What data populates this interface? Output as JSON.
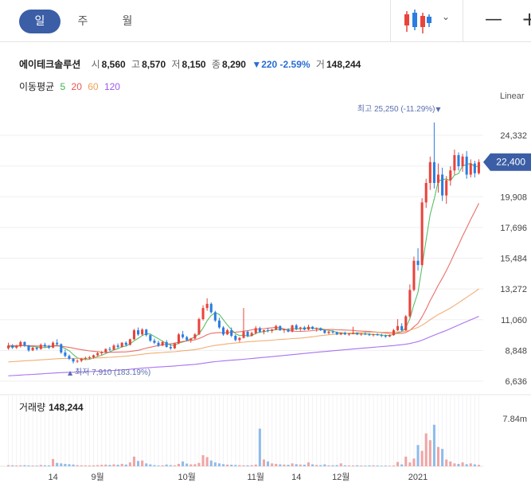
{
  "tabs": [
    {
      "label": "일",
      "active": true
    },
    {
      "label": "주",
      "active": false
    },
    {
      "label": "월",
      "active": false
    }
  ],
  "toolbar": {
    "chart_type_icon": "candlestick-icon",
    "dropdown_icon": "chevron-down-icon",
    "zoom_out_icon": "minus-icon",
    "zoom_in_icon": "plus-icon"
  },
  "stock": {
    "name": "에이테크솔루션",
    "open_label": "시",
    "open": "8,560",
    "high_label": "고",
    "high": "8,570",
    "low_label": "저",
    "low": "8,150",
    "close_label": "종",
    "close": "8,290",
    "change": "▼220 -2.59%",
    "volume_label": "거",
    "volume": "148,244"
  },
  "moving_average": {
    "label": "이동평균",
    "periods": [
      {
        "label": "5",
        "color": "#3cb44b"
      },
      {
        "label": "20",
        "color": "#e8554e"
      },
      {
        "label": "60",
        "color": "#f0a05a"
      },
      {
        "label": "120",
        "color": "#9b59f0"
      }
    ]
  },
  "scale_label": "Linear",
  "current_price_label": "22,400",
  "volume_panel": {
    "label": "거래량",
    "value": "148,244"
  },
  "colors": {
    "up": "#e8443c",
    "down": "#2b7de0",
    "accent": "#3b5ea6",
    "price_tag": "#3b5ea6"
  },
  "chart_data": {
    "type": "candlestick",
    "y_ticks": [
      "24,332",
      "22,120",
      "19,908",
      "17,696",
      "15,484",
      "13,272",
      "11,060",
      "8,848",
      "6,636"
    ],
    "ylim": [
      6636,
      24332
    ],
    "x_ticks": [
      {
        "label": "14",
        "index": 11
      },
      {
        "label": "9월",
        "index": 22
      },
      {
        "label": "10월",
        "index": 44
      },
      {
        "label": "11월",
        "index": 61
      },
      {
        "label": "14",
        "index": 71
      },
      {
        "label": "12월",
        "index": 82
      },
      {
        "label": "2021",
        "index": 101
      }
    ],
    "volume_ticks": [
      "7.84m"
    ],
    "volume_max": 7840000,
    "annotations": [
      {
        "text": "최고 25,250 (-11.29%)",
        "type": "high",
        "index": 106,
        "value": 25250
      },
      {
        "text": "최저 7,910 (183.19%)",
        "type": "low",
        "index": 16,
        "value": 7910
      }
    ],
    "candles": [
      [
        9000,
        9400,
        8900,
        9200
      ],
      [
        9200,
        9300,
        8950,
        9050
      ],
      [
        9050,
        9250,
        8950,
        9150
      ],
      [
        9150,
        9550,
        9050,
        9450
      ],
      [
        9450,
        9500,
        9100,
        9200
      ],
      [
        9200,
        9250,
        8750,
        8850
      ],
      [
        8850,
        9100,
        8800,
        9050
      ],
      [
        9050,
        9100,
        8850,
        8950
      ],
      [
        8950,
        9350,
        8900,
        9250
      ],
      [
        9250,
        9400,
        9050,
        9150
      ],
      [
        9150,
        9250,
        8950,
        9050
      ],
      [
        9050,
        9500,
        9000,
        9400
      ],
      [
        9400,
        9650,
        9200,
        9300
      ],
      [
        9300,
        9350,
        8600,
        8700
      ],
      [
        8700,
        8900,
        8350,
        8450
      ],
      [
        8450,
        8550,
        8150,
        8250
      ],
      [
        8250,
        8300,
        7910,
        8050
      ],
      [
        8050,
        8200,
        7950,
        8100
      ],
      [
        8100,
        8300,
        8000,
        8250
      ],
      [
        8250,
        8400,
        8150,
        8300
      ],
      [
        8300,
        8450,
        8200,
        8350
      ],
      [
        8350,
        8550,
        8250,
        8500
      ],
      [
        8500,
        8750,
        8400,
        8650
      ],
      [
        8650,
        8800,
        8500,
        8700
      ],
      [
        8700,
        9000,
        8650,
        8950
      ],
      [
        8950,
        9100,
        8800,
        8900
      ],
      [
        8900,
        9300,
        8850,
        9200
      ],
      [
        9200,
        9350,
        9000,
        9100
      ],
      [
        9100,
        9450,
        9050,
        9400
      ],
      [
        9400,
        9500,
        9150,
        9250
      ],
      [
        9250,
        9700,
        9200,
        9650
      ],
      [
        9650,
        10400,
        9600,
        10300
      ],
      [
        10300,
        10500,
        9900,
        10000
      ],
      [
        10000,
        10450,
        9900,
        10350
      ],
      [
        10350,
        10400,
        9850,
        9950
      ],
      [
        9950,
        10000,
        9450,
        9550
      ],
      [
        9550,
        9700,
        9300,
        9400
      ],
      [
        9400,
        9550,
        9100,
        9200
      ],
      [
        9200,
        9550,
        9150,
        9450
      ],
      [
        9450,
        9600,
        9050,
        9100
      ],
      [
        9100,
        9300,
        8900,
        9000
      ],
      [
        9000,
        9400,
        8950,
        9350
      ],
      [
        9350,
        10100,
        9300,
        10000
      ],
      [
        10000,
        10250,
        9700,
        9800
      ],
      [
        9800,
        9900,
        9500,
        9600
      ],
      [
        9600,
        9750,
        9400,
        9700
      ],
      [
        9700,
        10100,
        9650,
        10000
      ],
      [
        10000,
        11200,
        9950,
        11100
      ],
      [
        11100,
        12100,
        11000,
        11900
      ],
      [
        11900,
        12600,
        11700,
        12200
      ],
      [
        12200,
        12300,
        11500,
        11600
      ],
      [
        11600,
        11700,
        10900,
        11000
      ],
      [
        11000,
        11200,
        10400,
        10500
      ],
      [
        10500,
        10600,
        9900,
        10000
      ],
      [
        10000,
        10400,
        9950,
        10300
      ],
      [
        10300,
        10500,
        9800,
        9900
      ],
      [
        9900,
        10000,
        9500,
        9600
      ],
      [
        9600,
        9800,
        9450,
        9750
      ],
      [
        9750,
        11900,
        9700,
        10200
      ],
      [
        10200,
        10300,
        9800,
        9900
      ],
      [
        9900,
        10200,
        9850,
        10100
      ],
      [
        10100,
        10600,
        10000,
        10450
      ],
      [
        10450,
        10550,
        10100,
        10200
      ],
      [
        10200,
        10350,
        10000,
        10300
      ],
      [
        10300,
        10450,
        10150,
        10250
      ],
      [
        10250,
        10400,
        10100,
        10350
      ],
      [
        10350,
        10700,
        10300,
        10600
      ],
      [
        10600,
        10650,
        10250,
        10300
      ],
      [
        10300,
        10400,
        10100,
        10350
      ],
      [
        10350,
        10450,
        10150,
        10200
      ],
      [
        10200,
        10700,
        10150,
        10650
      ],
      [
        10650,
        10750,
        10300,
        10400
      ],
      [
        10400,
        10550,
        10250,
        10500
      ],
      [
        10500,
        10600,
        10300,
        10350
      ],
      [
        10350,
        10700,
        10300,
        10550
      ],
      [
        10550,
        10600,
        10350,
        10400
      ],
      [
        10400,
        10500,
        10200,
        10450
      ],
      [
        10450,
        10500,
        10250,
        10300
      ],
      [
        10300,
        10350,
        10050,
        10100
      ],
      [
        10100,
        10250,
        10000,
        10200
      ],
      [
        10200,
        10300,
        10050,
        10150
      ],
      [
        10150,
        10200,
        9950,
        10000
      ],
      [
        10000,
        10150,
        9950,
        10100
      ],
      [
        10100,
        10200,
        9950,
        10000
      ],
      [
        10000,
        10100,
        9900,
        10050
      ],
      [
        10050,
        10550,
        10000,
        10100
      ],
      [
        10100,
        10150,
        9950,
        10000
      ],
      [
        10000,
        10100,
        9900,
        10050
      ],
      [
        10050,
        10150,
        9950,
        10000
      ],
      [
        10000,
        10100,
        9900,
        9950
      ],
      [
        9950,
        10050,
        9850,
        10000
      ],
      [
        10000,
        10100,
        9900,
        9950
      ],
      [
        9950,
        10050,
        9800,
        9900
      ],
      [
        9900,
        10000,
        9750,
        9850
      ],
      [
        9850,
        10000,
        9800,
        9950
      ],
      [
        9950,
        10400,
        9900,
        10300
      ],
      [
        10300,
        11100,
        10250,
        10600
      ],
      [
        10600,
        10800,
        10200,
        10300
      ],
      [
        10300,
        11400,
        10250,
        11300
      ],
      [
        11300,
        13600,
        11200,
        13200
      ],
      [
        13200,
        15600,
        13100,
        15300
      ],
      [
        15300,
        16200,
        14600,
        15000
      ],
      [
        15000,
        19800,
        14900,
        19500
      ],
      [
        19500,
        21200,
        19100,
        20900
      ],
      [
        20900,
        22800,
        20400,
        22400
      ],
      [
        22400,
        25250,
        20500,
        20900
      ],
      [
        20900,
        22300,
        20200,
        21500
      ],
      [
        21500,
        22000,
        19600,
        20000
      ],
      [
        20000,
        21400,
        19400,
        21100
      ],
      [
        21100,
        22100,
        20700,
        21800
      ],
      [
        21800,
        23300,
        21500,
        22900
      ],
      [
        22900,
        23100,
        21800,
        22100
      ],
      [
        22100,
        23000,
        21700,
        22800
      ],
      [
        22800,
        23200,
        21200,
        21500
      ],
      [
        21500,
        22600,
        21300,
        22300
      ],
      [
        22300,
        22500,
        21300,
        21600
      ],
      [
        21600,
        22600,
        21500,
        22400
      ]
    ],
    "volumes": [
      0.12,
      0.1,
      0.08,
      0.1,
      0.11,
      0.09,
      0.08,
      0.07,
      0.14,
      0.1,
      0.09,
      0.75,
      0.35,
      0.3,
      0.25,
      0.22,
      0.18,
      0.12,
      0.1,
      0.09,
      0.08,
      0.1,
      0.12,
      0.15,
      0.18,
      0.14,
      0.2,
      0.16,
      0.25,
      0.18,
      0.4,
      1.0,
      0.55,
      0.6,
      0.3,
      0.2,
      0.12,
      0.08,
      0.1,
      0.18,
      0.12,
      0.1,
      0.25,
      0.5,
      0.28,
      0.2,
      0.22,
      0.35,
      1.15,
      0.95,
      0.6,
      0.4,
      0.3,
      0.22,
      0.18,
      0.16,
      0.14,
      0.12,
      0.1,
      0.1,
      0.12,
      0.18,
      3.9,
      0.7,
      0.5,
      0.3,
      0.25,
      0.2,
      0.18,
      0.16,
      0.3,
      0.22,
      0.18,
      0.16,
      0.4,
      0.2,
      0.14,
      0.12,
      0.2,
      0.1,
      0.1,
      0.12,
      0.3,
      0.1,
      0.09,
      0.08,
      0.1,
      0.08,
      0.07,
      0.09,
      0.1,
      0.08,
      0.06,
      0.07,
      0.06,
      0.08,
      0.45,
      0.2,
      1.0,
      0.4,
      0.8,
      2.2,
      1.6,
      3.4,
      2.7,
      4.3,
      2.0,
      1.8,
      0.7,
      0.5,
      0.3,
      0.25,
      0.4,
      0.22,
      0.3,
      0.2,
      0.15,
      0.18,
      0.12,
      0.1,
      0.08
    ],
    "volume_scale": 1700000
  }
}
